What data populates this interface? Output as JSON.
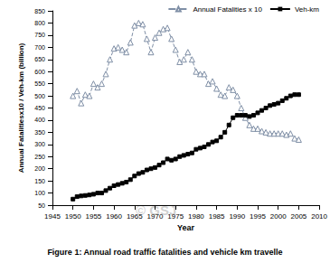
{
  "chart_data": {
    "type": "line",
    "title": "Figure 1: Annual road traffic fatalities and vehicle km travelle",
    "x_label": "Year",
    "y_label": "Annual Fatalitiesx10 / Veh-km (billion)",
    "annotations": [
      "© GSJ"
    ],
    "x": [
      1950,
      1951,
      1952,
      1953,
      1954,
      1955,
      1956,
      1957,
      1958,
      1959,
      1960,
      1961,
      1962,
      1963,
      1964,
      1965,
      1966,
      1967,
      1968,
      1969,
      1970,
      1971,
      1972,
      1973,
      1974,
      1975,
      1976,
      1977,
      1978,
      1979,
      1980,
      1981,
      1982,
      1983,
      1984,
      1985,
      1986,
      1987,
      1988,
      1989,
      1990,
      1991,
      1992,
      1993,
      1994,
      1995,
      1996,
      1997,
      1998,
      1999,
      2000,
      2001,
      2002,
      2003,
      2004,
      2005
    ],
    "series": [
      {
        "name": "Annual Fatalities x 10",
        "color": "#7f8fa6",
        "marker": "triangle",
        "line_style": "dashed",
        "values": [
          500,
          520,
          470,
          505,
          500,
          550,
          535,
          550,
          590,
          650,
          695,
          700,
          690,
          680,
          720,
          790,
          800,
          795,
          735,
          680,
          740,
          760,
          775,
          780,
          735,
          690,
          640,
          650,
          680,
          650,
          600,
          590,
          590,
          550,
          560,
          530,
          505,
          500,
          535,
          525,
          500,
          450,
          410,
          380,
          365,
          365,
          355,
          350,
          345,
          345,
          345,
          345,
          340,
          345,
          325,
          320
        ]
      },
      {
        "name": "Veh-km",
        "color": "#000000",
        "marker": "square",
        "line_style": "solid",
        "values": [
          75,
          85,
          88,
          90,
          92,
          95,
          100,
          100,
          110,
          120,
          130,
          135,
          140,
          145,
          155,
          170,
          180,
          185,
          195,
          200,
          205,
          215,
          225,
          240,
          235,
          240,
          250,
          255,
          260,
          265,
          280,
          285,
          290,
          300,
          310,
          315,
          330,
          350,
          380,
          410,
          420,
          420,
          420,
          415,
          420,
          430,
          440,
          450,
          460,
          465,
          470,
          480,
          490,
          500,
          505,
          505
        ]
      }
    ],
    "xlim": [
      1945,
      2010
    ],
    "xticks": [
      1945,
      1950,
      1955,
      1960,
      1965,
      1970,
      1975,
      1980,
      1985,
      1990,
      1995,
      2000,
      2005,
      2010
    ],
    "ylim": [
      50,
      850
    ],
    "yticks": [
      50,
      100,
      150,
      200,
      250,
      300,
      350,
      400,
      450,
      500,
      550,
      600,
      650,
      700,
      750,
      800,
      850
    ],
    "grid": false,
    "legend": "top-right"
  }
}
